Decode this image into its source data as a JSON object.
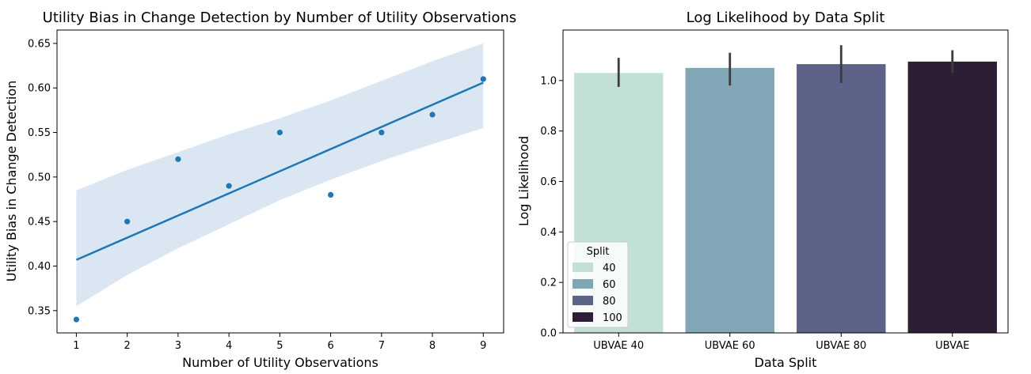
{
  "chart_data": [
    {
      "type": "scatter",
      "title": "Utility Bias in Change Detection by Number of Utility Observations",
      "xlabel": "Number of Utility Observations",
      "ylabel": "Utility Bias in Change Detection",
      "x": [
        1,
        2,
        3,
        4,
        5,
        6,
        7,
        8,
        9
      ],
      "y": [
        0.34,
        0.45,
        0.52,
        0.49,
        0.55,
        0.48,
        0.55,
        0.57,
        0.61
      ],
      "regression": {
        "x": [
          1,
          9
        ],
        "y": [
          0.407,
          0.606
        ]
      },
      "ci_upper": [
        0.485,
        0.508,
        0.528,
        0.548,
        0.566,
        0.586,
        0.608,
        0.63,
        0.65
      ],
      "ci_lower": [
        0.355,
        0.39,
        0.42,
        0.447,
        0.474,
        0.497,
        0.518,
        0.537,
        0.555
      ],
      "xticks": [
        "1",
        "2",
        "3",
        "4",
        "5",
        "6",
        "7",
        "8",
        "9"
      ],
      "yticks": [
        "0.35",
        "0.40",
        "0.45",
        "0.50",
        "0.55",
        "0.60",
        "0.65"
      ],
      "xlim": [
        0.62,
        9.4
      ],
      "ylim": [
        0.325,
        0.665
      ],
      "grid": false,
      "colors": {
        "points": "#1f77b4",
        "line": "#1f77b4",
        "band": "#dae7f3"
      }
    },
    {
      "type": "bar",
      "title": "Log Likelihood by Data Split",
      "xlabel": "Data Split",
      "ylabel": "Log Likelihood",
      "categories": [
        "UBVAE 40",
        "UBVAE 60",
        "UBVAE 80",
        "UBVAE"
      ],
      "values": [
        1.03,
        1.05,
        1.065,
        1.075
      ],
      "error_low": [
        0.975,
        0.98,
        0.99,
        1.03
      ],
      "error_high": [
        1.09,
        1.11,
        1.14,
        1.12
      ],
      "yticks": [
        "0.0",
        "0.2",
        "0.4",
        "0.6",
        "0.8",
        "1.0"
      ],
      "ylim": [
        0,
        1.2
      ],
      "grid": false,
      "legend": {
        "title": "Split",
        "entries": [
          "40",
          "60",
          "80",
          "100"
        ],
        "placement": "lower-left"
      },
      "colors": [
        "#c3e0d8",
        "#81a6b5",
        "#5d6289",
        "#2d1e36"
      ],
      "errorbar_color": "#3c3c3c"
    }
  ]
}
